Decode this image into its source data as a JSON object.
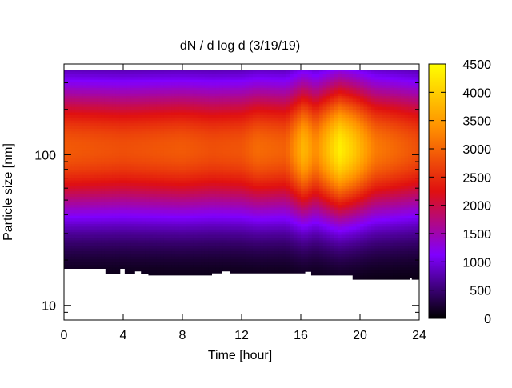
{
  "chart_data": {
    "type": "heatmap",
    "title": "dN / d log d (3/19/19)",
    "xlabel": "Time [hour]",
    "ylabel": "Particle size [nm]",
    "x_range": [
      0,
      24
    ],
    "x_ticks": [
      "0",
      "4",
      "8",
      "12",
      "16",
      "20",
      "24"
    ],
    "y_scale": "log",
    "y_range": [
      8,
      400
    ],
    "y_ticks": [
      {
        "value": 10,
        "label": "10"
      },
      {
        "value": 100,
        "label": "100"
      }
    ],
    "colorbar": {
      "range": [
        0,
        4500
      ],
      "ticks": [
        "0",
        "500",
        "1000",
        "1500",
        "2000",
        "2500",
        "3000",
        "3500",
        "4000",
        "4500"
      ],
      "colormap": [
        "#000000",
        "#8000ff",
        "#e01010",
        "#ff9000",
        "#ffff00"
      ]
    },
    "data_top_size_nm": 390,
    "lower_size_cutoff_nm": [
      {
        "x": 0,
        "size": 17.5
      },
      {
        "x": 2.8,
        "size": 16.2
      },
      {
        "x": 3.8,
        "size": 17.5
      },
      {
        "x": 4.1,
        "size": 16.2
      },
      {
        "x": 4.8,
        "size": 16.8
      },
      {
        "x": 5.2,
        "size": 16.2
      },
      {
        "x": 5.7,
        "size": 15.8
      },
      {
        "x": 10,
        "size": 16.3
      },
      {
        "x": 10.7,
        "size": 16.8
      },
      {
        "x": 11.2,
        "size": 16.3
      },
      {
        "x": 16.3,
        "size": 16.7
      },
      {
        "x": 16.7,
        "size": 15.8
      },
      {
        "x": 19.5,
        "size": 14.8
      },
      {
        "x": 23.4,
        "size": 15.3
      },
      {
        "x": 23.5,
        "size": 14.8
      }
    ],
    "size_distribution": [
      {
        "time": 0,
        "peak_size_nm": 110,
        "peak_value": 2900
      },
      {
        "time": 2,
        "peak_size_nm": 110,
        "peak_value": 2850
      },
      {
        "time": 4,
        "peak_size_nm": 110,
        "peak_value": 2800
      },
      {
        "time": 6,
        "peak_size_nm": 110,
        "peak_value": 2850
      },
      {
        "time": 8,
        "peak_size_nm": 110,
        "peak_value": 2900
      },
      {
        "time": 10,
        "peak_size_nm": 110,
        "peak_value": 2800
      },
      {
        "time": 12,
        "peak_size_nm": 110,
        "peak_value": 2850
      },
      {
        "time": 13,
        "peak_size_nm": 110,
        "peak_value": 3050
      },
      {
        "time": 15,
        "peak_size_nm": 110,
        "peak_value": 2950
      },
      {
        "time": 16.2,
        "peak_size_nm": 110,
        "peak_value": 3800
      },
      {
        "time": 17,
        "peak_size_nm": 110,
        "peak_value": 3300
      },
      {
        "time": 18.6,
        "peak_size_nm": 110,
        "peak_value": 4350
      },
      {
        "time": 19.5,
        "peak_size_nm": 110,
        "peak_value": 4000
      },
      {
        "time": 21,
        "peak_size_nm": 110,
        "peak_value": 3200
      },
      {
        "time": 24,
        "peak_size_nm": 110,
        "peak_value": 2800
      }
    ]
  }
}
